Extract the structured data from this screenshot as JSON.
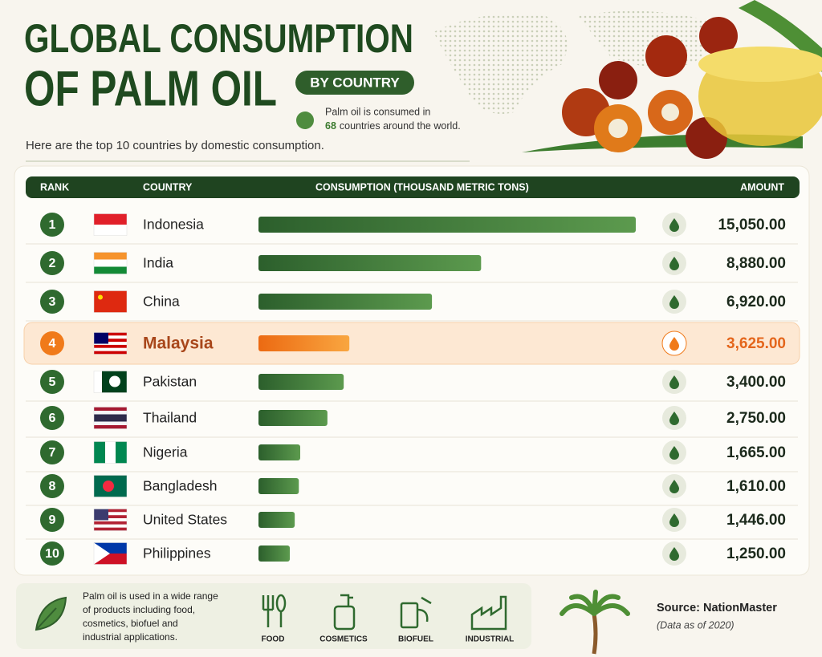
{
  "header": {
    "title_line1": "GLOBAL CONSUMPTION",
    "title_line2": "OF PALM OIL",
    "badge": "BY COUNTRY",
    "note_prefix": "Palm oil is consumed in",
    "note_count": "68",
    "note_suffix": "countries around the world.",
    "intro": "Here are the top 10 countries by domestic consumption."
  },
  "chart_data": {
    "type": "bar",
    "orientation": "horizontal",
    "column_headers": [
      "RANK",
      "COUNTRY",
      "CONSUMPTION (THOUSAND METRIC TONS)",
      "AMOUNT"
    ],
    "ranks": [
      "1",
      "2",
      "3",
      "4",
      "5",
      "6",
      "7",
      "8",
      "9",
      "10"
    ],
    "categories": [
      "Indonesia",
      "India",
      "China",
      "Malaysia",
      "Pakistan",
      "Thailand",
      "Nigeria",
      "Bangladesh",
      "United States",
      "Philippines"
    ],
    "values": [
      15050,
      8880,
      6920,
      3625,
      3400,
      2750,
      1665,
      1610,
      1446,
      1250
    ],
    "value_labels": [
      "15,050.00",
      "8,880.00",
      "6,920.00",
      "3,625.00",
      "3,400.00",
      "2,750.00",
      "1,665.00",
      "1,610.00",
      "1,446.00",
      "1,250.00"
    ],
    "colors": [
      "#2f6a2f",
      "#2f6a2f",
      "#2f6a2f",
      "#f07a1a",
      "#2f6a2f",
      "#2f6a2f",
      "#2f6a2f",
      "#2f6a2f",
      "#2f6a2f",
      "#2f6a2f"
    ]
  },
  "footer": {
    "description": [
      "Palm oil is used in a wide range",
      "of products including food,",
      "cosmetics, biofuel and",
      "industrial applications."
    ],
    "uses": [
      "FOOD",
      "COSMETICS",
      "BIOFUEL",
      "INDUSTRIAL"
    ],
    "source": "Source: NationMaster",
    "date_note": "(Data as of 2020)"
  }
}
